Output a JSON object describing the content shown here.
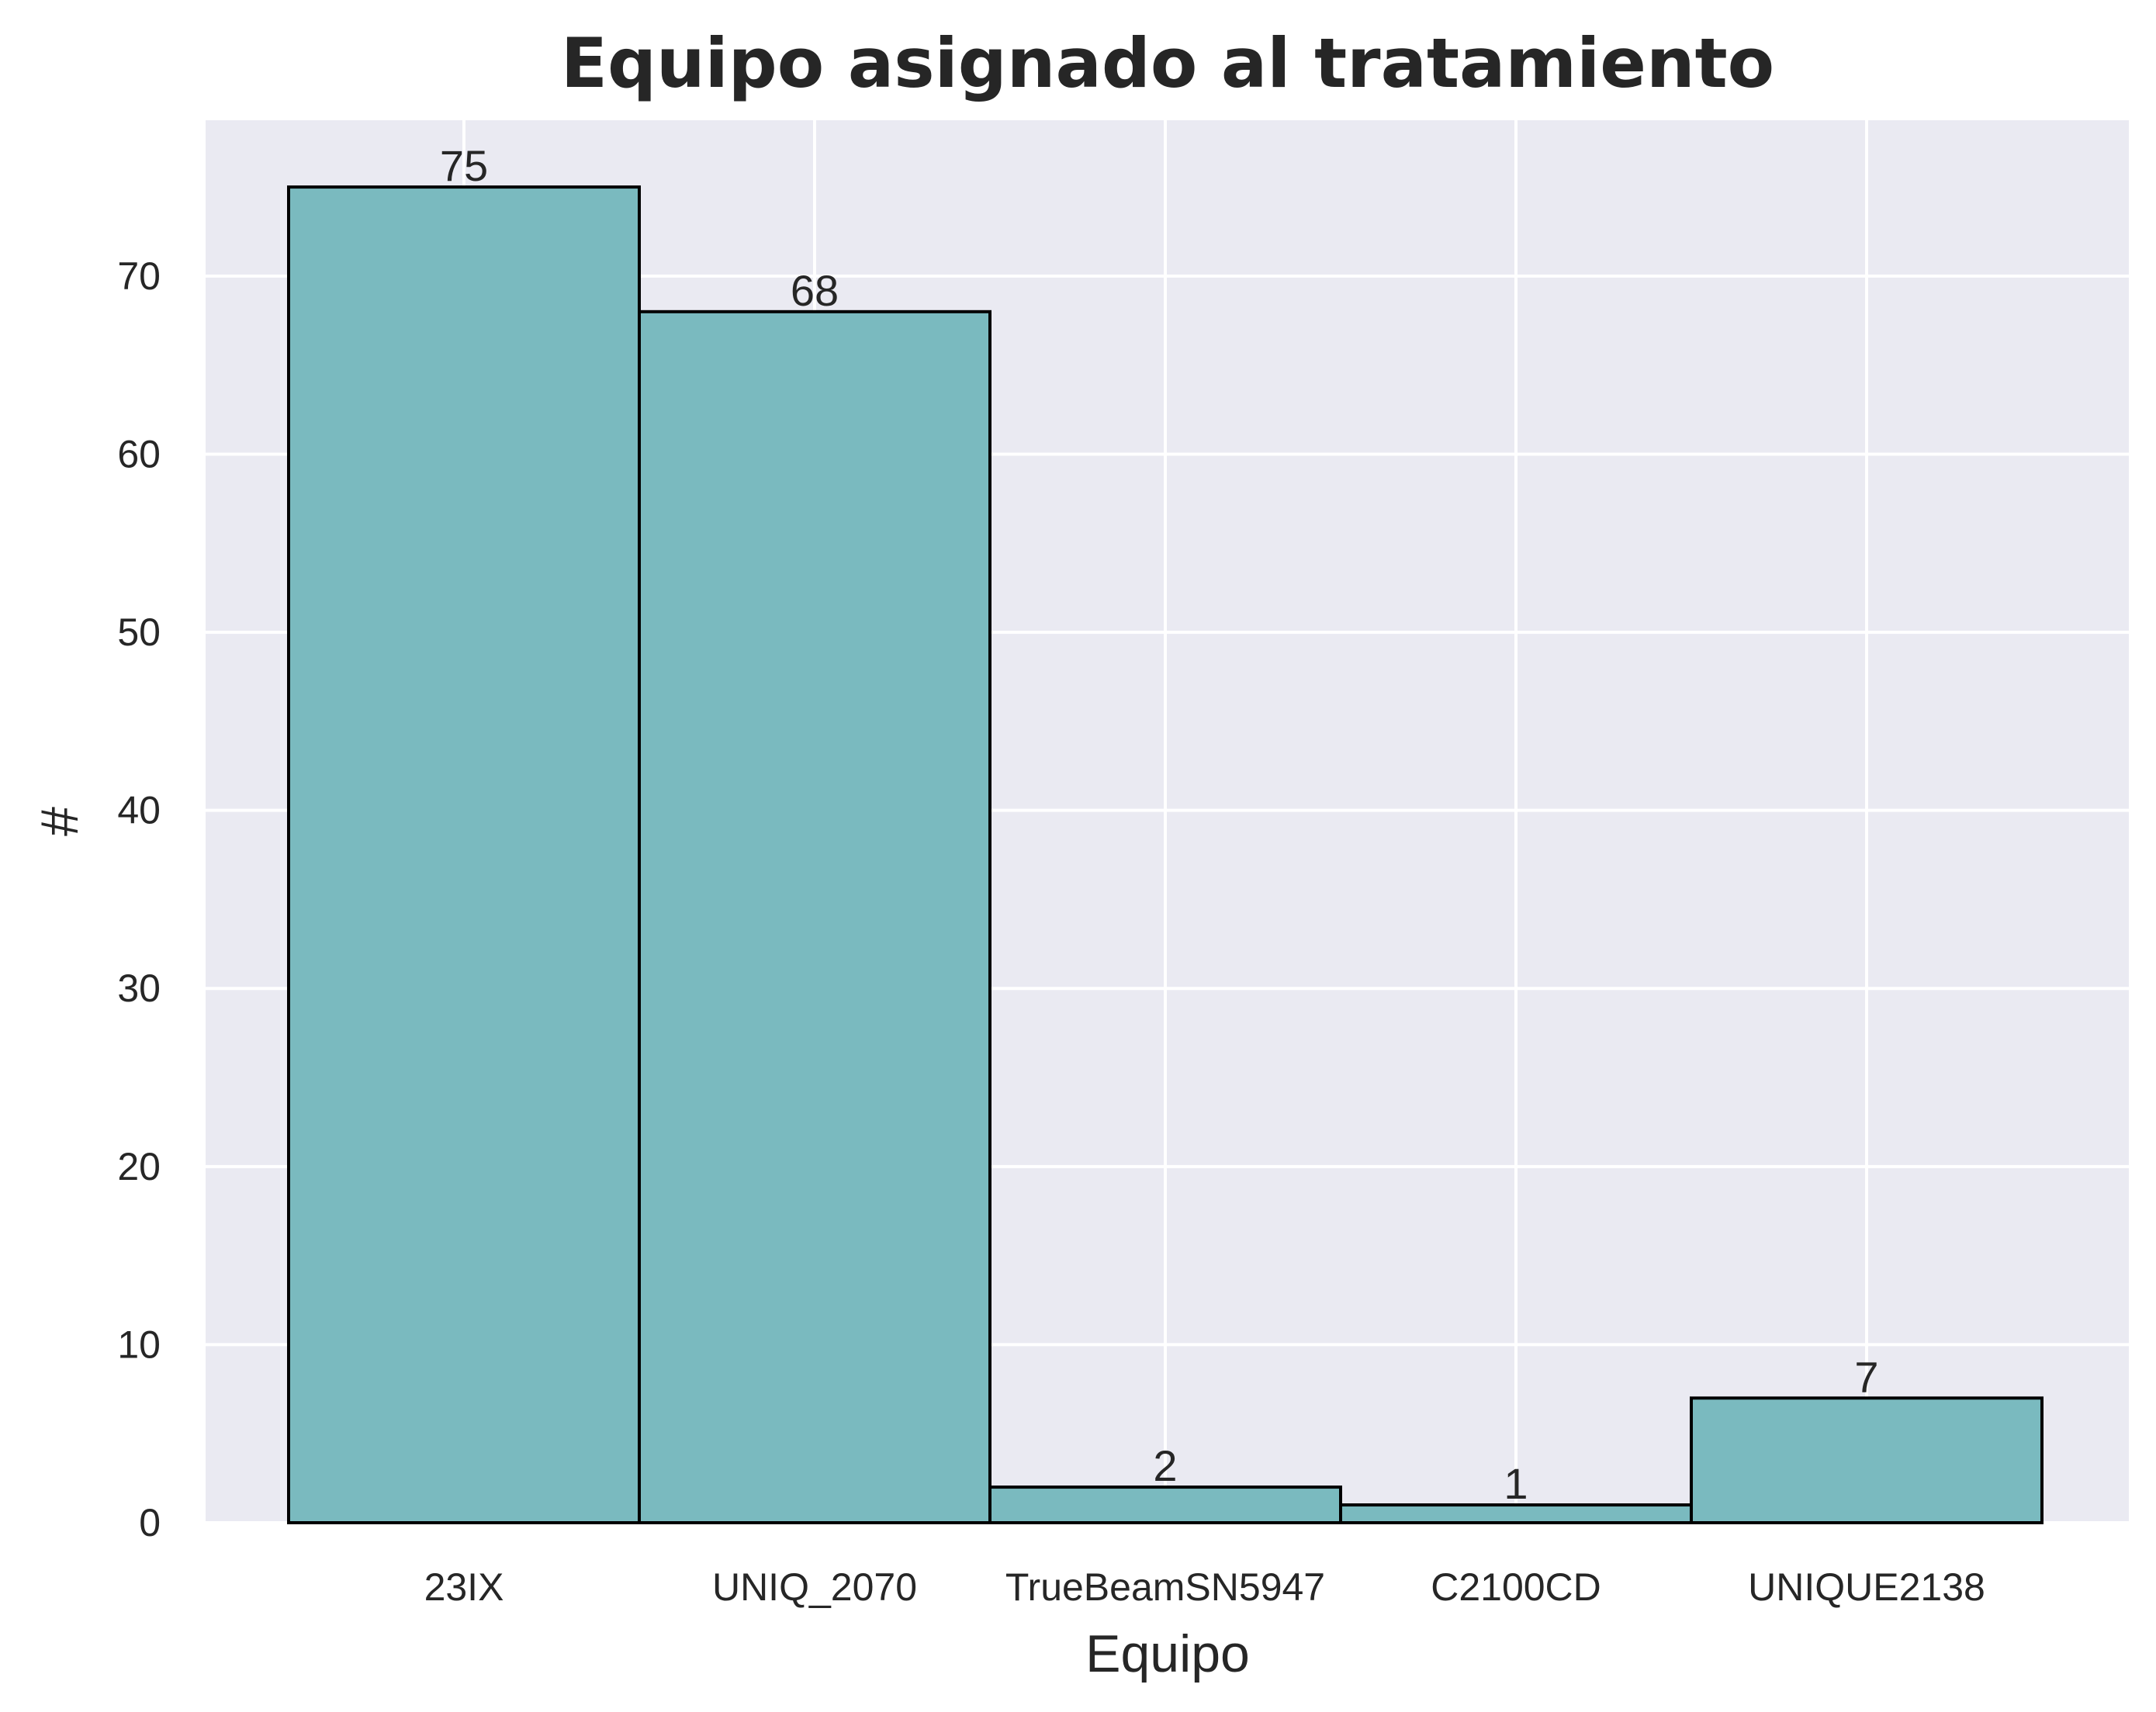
{
  "chart_data": {
    "type": "bar",
    "title": "Equipo asignado al tratamiento",
    "xlabel": "Equipo",
    "ylabel": "#",
    "categories": [
      "23IX",
      "UNIQ_2070",
      "TrueBeamSN5947",
      "C2100CD",
      "UNIQUE2138"
    ],
    "values": [
      75,
      68,
      2,
      1,
      7
    ],
    "data_labels": [
      "75",
      "68",
      "2",
      "1",
      "7"
    ],
    "ylim": [
      0,
      78.75
    ],
    "yticks": [
      0,
      10,
      20,
      30,
      40,
      50,
      60,
      70
    ],
    "grid": true,
    "legend": "none",
    "colors": {
      "bar_fill": "#76b8bd",
      "bar_edge": "#000000",
      "plot_background": "#eaeaf2",
      "grid": "#ffffff",
      "text": "#262626"
    }
  }
}
